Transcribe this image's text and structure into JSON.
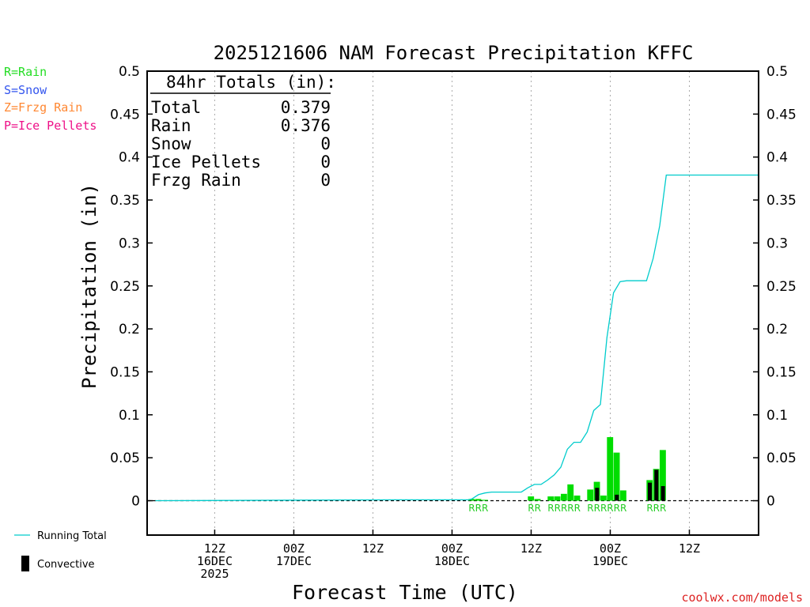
{
  "chart_data": {
    "type": "bar",
    "title": "2025121606 NAM Forecast Precipitation KFFC",
    "ylabel": "Precipitation (in)",
    "xlabel": "Forecast Time (UTC)",
    "ylim": [
      -0.04,
      0.5
    ],
    "xlim_hours": [
      -4.25,
      88.5
    ],
    "y_ticks": [
      {
        "value": 0.5,
        "label": "0.5"
      },
      {
        "value": 0.45,
        "label": "0.45"
      },
      {
        "value": 0.4,
        "label": "0.4"
      },
      {
        "value": 0.35,
        "label": "0.35"
      },
      {
        "value": 0.3,
        "label": "0.3"
      },
      {
        "value": 0.25,
        "label": "0.25"
      },
      {
        "value": 0.2,
        "label": "0.2"
      },
      {
        "value": 0.15,
        "label": "0.15"
      },
      {
        "value": 0.1,
        "label": "0.1"
      },
      {
        "value": 0.05,
        "label": "0.05"
      },
      {
        "value": 0,
        "label": "0"
      }
    ],
    "x_ticks": [
      {
        "hour": 6,
        "line1": "12Z",
        "line2": "16DEC",
        "line3": "2025"
      },
      {
        "hour": 18,
        "line1": "00Z",
        "line2": "17DEC",
        "line3": ""
      },
      {
        "hour": 30,
        "line1": "12Z",
        "line2": "",
        "line3": ""
      },
      {
        "hour": 42,
        "line1": "00Z",
        "line2": "18DEC",
        "line3": ""
      },
      {
        "hour": 54,
        "line1": "12Z",
        "line2": "",
        "line3": ""
      },
      {
        "hour": 66,
        "line1": "00Z",
        "line2": "19DEC",
        "line3": ""
      },
      {
        "hour": 78,
        "line1": "12Z",
        "line2": "",
        "line3": ""
      }
    ],
    "series": [
      {
        "name": "Rain",
        "color": "#00dd00",
        "points": [
          {
            "hour": 45,
            "value": 0.002
          },
          {
            "hour": 46,
            "value": 0.002
          },
          {
            "hour": 47,
            "value": 0.001
          },
          {
            "hour": 54,
            "value": 0.005
          },
          {
            "hour": 55,
            "value": 0.002
          },
          {
            "hour": 57,
            "value": 0.005
          },
          {
            "hour": 58,
            "value": 0.005
          },
          {
            "hour": 59,
            "value": 0.008
          },
          {
            "hour": 60,
            "value": 0.019
          },
          {
            "hour": 61,
            "value": 0.006
          },
          {
            "hour": 63,
            "value": 0.013
          },
          {
            "hour": 64,
            "value": 0.022
          },
          {
            "hour": 65,
            "value": 0.006
          },
          {
            "hour": 66,
            "value": 0.074
          },
          {
            "hour": 67,
            "value": 0.056
          },
          {
            "hour": 68,
            "value": 0.012
          },
          {
            "hour": 72,
            "value": 0.024
          },
          {
            "hour": 73,
            "value": 0.037
          },
          {
            "hour": 74,
            "value": 0.059
          }
        ]
      },
      {
        "name": "Convective",
        "color": "#000000",
        "points": [
          {
            "hour": 64,
            "value": 0.015
          },
          {
            "hour": 67,
            "value": 0.007
          },
          {
            "hour": 72,
            "value": 0.021
          },
          {
            "hour": 73,
            "value": 0.036
          },
          {
            "hour": 74,
            "value": 0.017
          }
        ]
      },
      {
        "name": "Running Total",
        "color": "#00cccc",
        "points": [
          [
            -3,
            0
          ],
          [
            33.5,
            0.001
          ],
          [
            44.5,
            0.001
          ],
          [
            45,
            0.002
          ],
          [
            46,
            0.007
          ],
          [
            47,
            0.009
          ],
          [
            48,
            0.01
          ],
          [
            52.5,
            0.01
          ],
          [
            53.5,
            0.015
          ],
          [
            54.5,
            0.019
          ],
          [
            55.5,
            0.019
          ],
          [
            56.5,
            0.024
          ],
          [
            57.5,
            0.03
          ],
          [
            58.5,
            0.039
          ],
          [
            59.5,
            0.06
          ],
          [
            60.5,
            0.068
          ],
          [
            61.5,
            0.068
          ],
          [
            62.5,
            0.08
          ],
          [
            63.5,
            0.105
          ],
          [
            64.5,
            0.112
          ],
          [
            65.5,
            0.19
          ],
          [
            66.5,
            0.242
          ],
          [
            67.5,
            0.255
          ],
          [
            68.5,
            0.256
          ],
          [
            71.5,
            0.256
          ],
          [
            72.5,
            0.282
          ],
          [
            73.5,
            0.32
          ],
          [
            74.5,
            0.379
          ],
          [
            88.5,
            0.379
          ]
        ]
      }
    ],
    "type_codes": [
      {
        "hour": 45,
        "code": "R"
      },
      {
        "hour": 46,
        "code": "R"
      },
      {
        "hour": 47,
        "code": "R"
      },
      {
        "hour": 54,
        "code": "R"
      },
      {
        "hour": 55,
        "code": "R"
      },
      {
        "hour": 57,
        "code": "R"
      },
      {
        "hour": 58,
        "code": "R"
      },
      {
        "hour": 59,
        "code": "R"
      },
      {
        "hour": 60,
        "code": "R"
      },
      {
        "hour": 61,
        "code": "R"
      },
      {
        "hour": 63,
        "code": "R"
      },
      {
        "hour": 64,
        "code": "R"
      },
      {
        "hour": 65,
        "code": "R"
      },
      {
        "hour": 66,
        "code": "R"
      },
      {
        "hour": 67,
        "code": "R"
      },
      {
        "hour": 68,
        "code": "R"
      },
      {
        "hour": 72,
        "code": "R"
      },
      {
        "hour": 73,
        "code": "R"
      },
      {
        "hour": 74,
        "code": "R"
      }
    ]
  },
  "totals": {
    "heading": "84hr Totals (in):",
    "rows": [
      {
        "label": "Total",
        "value": "0.379"
      },
      {
        "label": "Rain",
        "value": "0.376"
      },
      {
        "label": "Snow",
        "value": "0"
      },
      {
        "label": "Ice Pellets",
        "value": "0"
      },
      {
        "label": "Frzg Rain",
        "value": "0"
      }
    ]
  },
  "type_legend": [
    {
      "text": "R=Rain",
      "color": "#22dd22"
    },
    {
      "text": "S=Snow",
      "color": "#3355ee"
    },
    {
      "text": "Z=Frzg Rain",
      "color": "#ff8833"
    },
    {
      "text": "P=Ice Pellets",
      "color": "#ee1188"
    }
  ],
  "bottom_legend": {
    "running_total": "Running Total",
    "convective": "Convective"
  },
  "credit": "coolwx.com/models",
  "colors": {
    "rain": "#00dd00",
    "convective": "#000000",
    "running_total": "#00cccc",
    "rain_code": "#22cc22",
    "credit": "#dd2222"
  }
}
